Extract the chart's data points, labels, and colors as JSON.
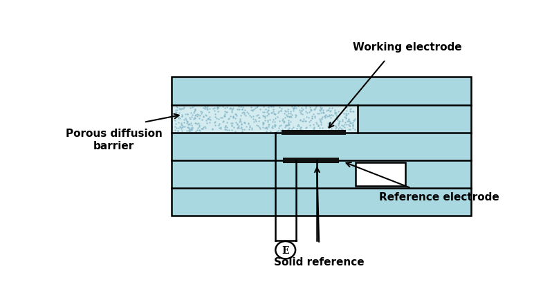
{
  "fig_width": 7.98,
  "fig_height": 4.35,
  "dpi": 100,
  "bg_color": "#ffffff",
  "cyan_color": "#aad8e0",
  "porous_color": "#d4ecf0",
  "electrode_color": "#111111",
  "outline_color": "#000000",
  "white_color": "#ffffff",
  "labels": {
    "working_electrode": "Working electrode",
    "porous_diffusion": "Porous diffusion\nbarrier",
    "reference_electrode": "Reference electrode",
    "solid_reference": "Solid reference"
  },
  "mx": 0.24,
  "my": 0.22,
  "mw": 0.7,
  "mh": 0.6
}
